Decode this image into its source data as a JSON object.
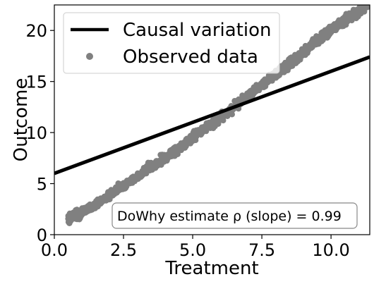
{
  "chart_data": {
    "type": "scatter",
    "xlabel": "Treatment",
    "ylabel": "Outcome",
    "xlim": [
      0,
      11.4
    ],
    "ylim": [
      0,
      22.5
    ],
    "x_ticks": [
      0.0,
      2.5,
      5.0,
      7.5,
      10.0
    ],
    "x_tick_labels": [
      "0.0",
      "2.5",
      "5.0",
      "7.5",
      "10.0"
    ],
    "y_ticks": [
      0,
      5,
      10,
      15,
      20
    ],
    "y_tick_labels": [
      "0",
      "5",
      "10",
      "15",
      "20"
    ],
    "grid": false,
    "legend_position": "upper-left",
    "series": [
      {
        "name": "Causal variation",
        "kind": "line",
        "color": "#000000",
        "x": [
          0,
          11.4
        ],
        "y": [
          6.0,
          17.4
        ]
      },
      {
        "name": "Observed data",
        "kind": "scatter",
        "color": "#808080",
        "x": [
          0.5,
          0.8,
          1.0,
          1.5,
          2.0,
          2.5,
          3.0,
          3.5,
          4.0,
          4.5,
          5.0,
          5.5,
          6.0,
          6.5,
          7.0,
          7.5,
          8.0,
          8.5,
          9.0,
          9.5,
          10.0,
          10.5,
          11.0,
          11.4
        ],
        "y": [
          1.5,
          1.9,
          2.2,
          3.0,
          3.9,
          4.8,
          5.7,
          6.6,
          7.5,
          8.5,
          9.5,
          10.5,
          11.5,
          12.5,
          13.6,
          14.7,
          15.7,
          16.8,
          17.9,
          19.0,
          20.0,
          21.0,
          21.8,
          22.5
        ]
      }
    ],
    "annotation": "DoWhy estimate ρ (slope) = 0.99"
  }
}
